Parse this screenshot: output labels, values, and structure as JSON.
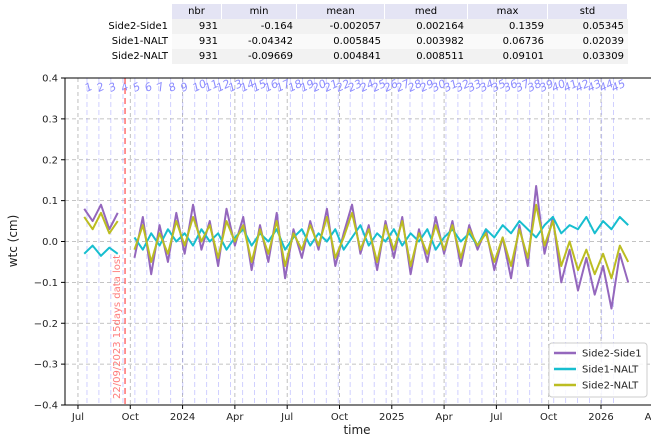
{
  "table": {
    "columns": [
      "nbr",
      "min",
      "mean",
      "med",
      "max",
      "std"
    ],
    "rows": [
      {
        "name": "Side2-Side1",
        "cells": [
          "931",
          "-0.164",
          "-0.002057",
          "0.002164",
          "0.1359",
          "0.05345"
        ]
      },
      {
        "name": "Side1-NALT",
        "cells": [
          "931",
          "-0.04342",
          "0.005845",
          "0.003982",
          "0.06736",
          "0.02039"
        ]
      },
      {
        "name": "Side2-NALT",
        "cells": [
          "931",
          "-0.09669",
          "0.004841",
          "0.008511",
          "0.09101",
          "0.03309"
        ]
      }
    ]
  },
  "chart_data": {
    "type": "line",
    "xlabel": "time",
    "ylabel": "wtc (cm)",
    "grid": true,
    "legend": "lower right",
    "xlim": [
      2023.438,
      2026.239
    ],
    "ylim": [
      -0.4,
      0.4
    ],
    "xticks": [
      {
        "value": 2023.5,
        "label": "Jul"
      },
      {
        "value": 2023.75,
        "label": "Oct"
      },
      2024,
      {
        "value": 2024.25,
        "label": "Apr"
      },
      {
        "value": 2024.5,
        "label": "Jul"
      },
      {
        "value": 2024.75,
        "label": "Oct"
      },
      2025,
      {
        "value": 2025.25,
        "label": "Apr"
      },
      {
        "value": 2025.5,
        "label": "Jul"
      },
      {
        "value": 2025.75,
        "label": "Oct"
      },
      2026,
      {
        "value": 2026.25,
        "label": "Apr"
      }
    ],
    "yticks": [
      {
        "value": -0.4,
        "label": "−0.4"
      },
      {
        "value": -0.3,
        "label": "−0.3"
      },
      {
        "value": -0.2,
        "label": "−0.2"
      },
      {
        "value": -0.1,
        "label": "−0.1"
      },
      {
        "value": 0,
        "label": "0.0"
      },
      0.1,
      0.2,
      0.3,
      0.4
    ],
    "x": [
      2023.53,
      2023.57,
      2023.61,
      2023.65,
      2023.69,
      2023.73,
      2023.77,
      2023.81,
      2023.85,
      2023.89,
      2023.93,
      2023.97,
      2024.01,
      2024.05,
      2024.09,
      2024.13,
      2024.17,
      2024.21,
      2024.25,
      2024.29,
      2024.33,
      2024.37,
      2024.41,
      2024.45,
      2024.49,
      2024.53,
      2024.57,
      2024.61,
      2024.65,
      2024.69,
      2024.73,
      2024.77,
      2024.81,
      2024.85,
      2024.89,
      2024.93,
      2024.97,
      2025.01,
      2025.05,
      2025.09,
      2025.13,
      2025.17,
      2025.21,
      2025.25,
      2025.29,
      2025.33,
      2025.37,
      2025.41,
      2025.45,
      2025.49,
      2025.53,
      2025.57,
      2025.61,
      2025.65,
      2025.69,
      2025.73,
      2025.77,
      2025.81,
      2025.85,
      2025.89,
      2025.93,
      2025.97,
      2026.01,
      2026.05,
      2026.09,
      2026.13
    ],
    "series": [
      {
        "name": "Side2-Side1",
        "color": "#9467bd",
        "values": [
          0.08,
          0.05,
          0.09,
          0.03,
          0.07,
          null,
          -0.04,
          0.06,
          -0.08,
          0.04,
          -0.05,
          0.07,
          -0.03,
          0.09,
          -0.02,
          0.05,
          -0.06,
          0.08,
          -0.01,
          0.06,
          -0.07,
          0.04,
          -0.05,
          0.07,
          -0.09,
          0.03,
          -0.04,
          0.05,
          -0.02,
          0.08,
          -0.06,
          0.02,
          0.09,
          -0.03,
          0.04,
          -0.07,
          0.05,
          -0.04,
          0.06,
          -0.08,
          0.03,
          -0.05,
          0.06,
          -0.03,
          0.05,
          -0.06,
          0.04,
          -0.02,
          0.03,
          -0.07,
          0.01,
          -0.09,
          0.04,
          -0.06,
          0.1359,
          -0.03,
          0.06,
          -0.1,
          -0.02,
          -0.12,
          -0.04,
          -0.13,
          -0.06,
          -0.164,
          -0.03,
          -0.1
        ]
      },
      {
        "name": "Side1-NALT",
        "color": "#17becf",
        "values": [
          -0.03,
          -0.01,
          -0.035,
          -0.015,
          -0.03,
          null,
          0.01,
          -0.02,
          0.02,
          -0.01,
          0.03,
          0,
          0.02,
          -0.01,
          0.03,
          0,
          0.02,
          -0.02,
          0.01,
          0.03,
          -0.01,
          0.02,
          0,
          0.03,
          -0.02,
          0.01,
          0.03,
          -0.01,
          0.02,
          0,
          0.03,
          -0.02,
          0.01,
          0.04,
          -0.01,
          0.02,
          0,
          0.03,
          -0.01,
          0.02,
          0,
          0.03,
          -0.02,
          0.01,
          0.03,
          0,
          0.02,
          -0.01,
          0.03,
          0.01,
          0.04,
          0.02,
          0.05,
          0.03,
          0.01,
          0.04,
          0.06,
          0.02,
          0.04,
          0.03,
          0.06,
          0.02,
          0.05,
          0.03,
          0.06,
          0.04
        ]
      },
      {
        "name": "Side2-NALT",
        "color": "#bcbd22",
        "values": [
          0.06,
          0.03,
          0.07,
          0.02,
          0.05,
          null,
          -0.02,
          0.04,
          -0.05,
          0.02,
          -0.03,
          0.05,
          -0.01,
          0.06,
          0,
          0.04,
          -0.04,
          0.05,
          0,
          0.04,
          -0.05,
          0.03,
          -0.03,
          0.05,
          -0.06,
          0.02,
          -0.02,
          0.04,
          -0.01,
          0.06,
          -0.04,
          0.01,
          0.07,
          -0.02,
          0.03,
          -0.05,
          0.04,
          -0.02,
          0.05,
          -0.06,
          0.02,
          -0.03,
          0.04,
          -0.02,
          0.04,
          -0.04,
          0.03,
          -0.01,
          0.02,
          -0.05,
          0.01,
          -0.06,
          0.03,
          -0.04,
          0.09,
          -0.01,
          0.05,
          -0.06,
          0,
          -0.07,
          -0.02,
          -0.08,
          -0.03,
          -0.09,
          -0.01,
          -0.05
        ]
      }
    ],
    "cycle_labels": [
      1,
      2,
      3,
      4,
      5,
      6,
      7,
      8,
      9,
      10,
      11,
      12,
      13,
      14,
      15,
      16,
      17,
      18,
      19,
      20,
      21,
      22,
      23,
      24,
      25,
      26,
      27,
      28,
      29,
      30,
      31,
      32,
      33,
      34,
      35,
      36,
      37,
      38,
      39,
      40,
      41,
      42,
      43,
      44,
      45
    ],
    "cycle_x": [
      2023.543,
      2023.6,
      2023.657,
      2023.715,
      2023.772,
      2023.829,
      2023.886,
      2023.943,
      2024.001,
      2024.058,
      2024.115,
      2024.172,
      2024.229,
      2024.287,
      2024.344,
      2024.401,
      2024.458,
      2024.515,
      2024.573,
      2024.63,
      2024.687,
      2024.744,
      2024.801,
      2024.859,
      2024.916,
      2024.973,
      2025.03,
      2025.087,
      2025.145,
      2025.202,
      2025.259,
      2025.316,
      2025.373,
      2025.431,
      2025.488,
      2025.545,
      2025.602,
      2025.659,
      2025.717,
      2025.774,
      2025.831,
      2025.888,
      2025.945,
      2026.003,
      2026.06
    ],
    "cycle_color": "#8c8cff",
    "annotation": {
      "text": "22/09/2023 15days data lost",
      "x": 2023.725,
      "color": "#ff5a5a"
    }
  }
}
